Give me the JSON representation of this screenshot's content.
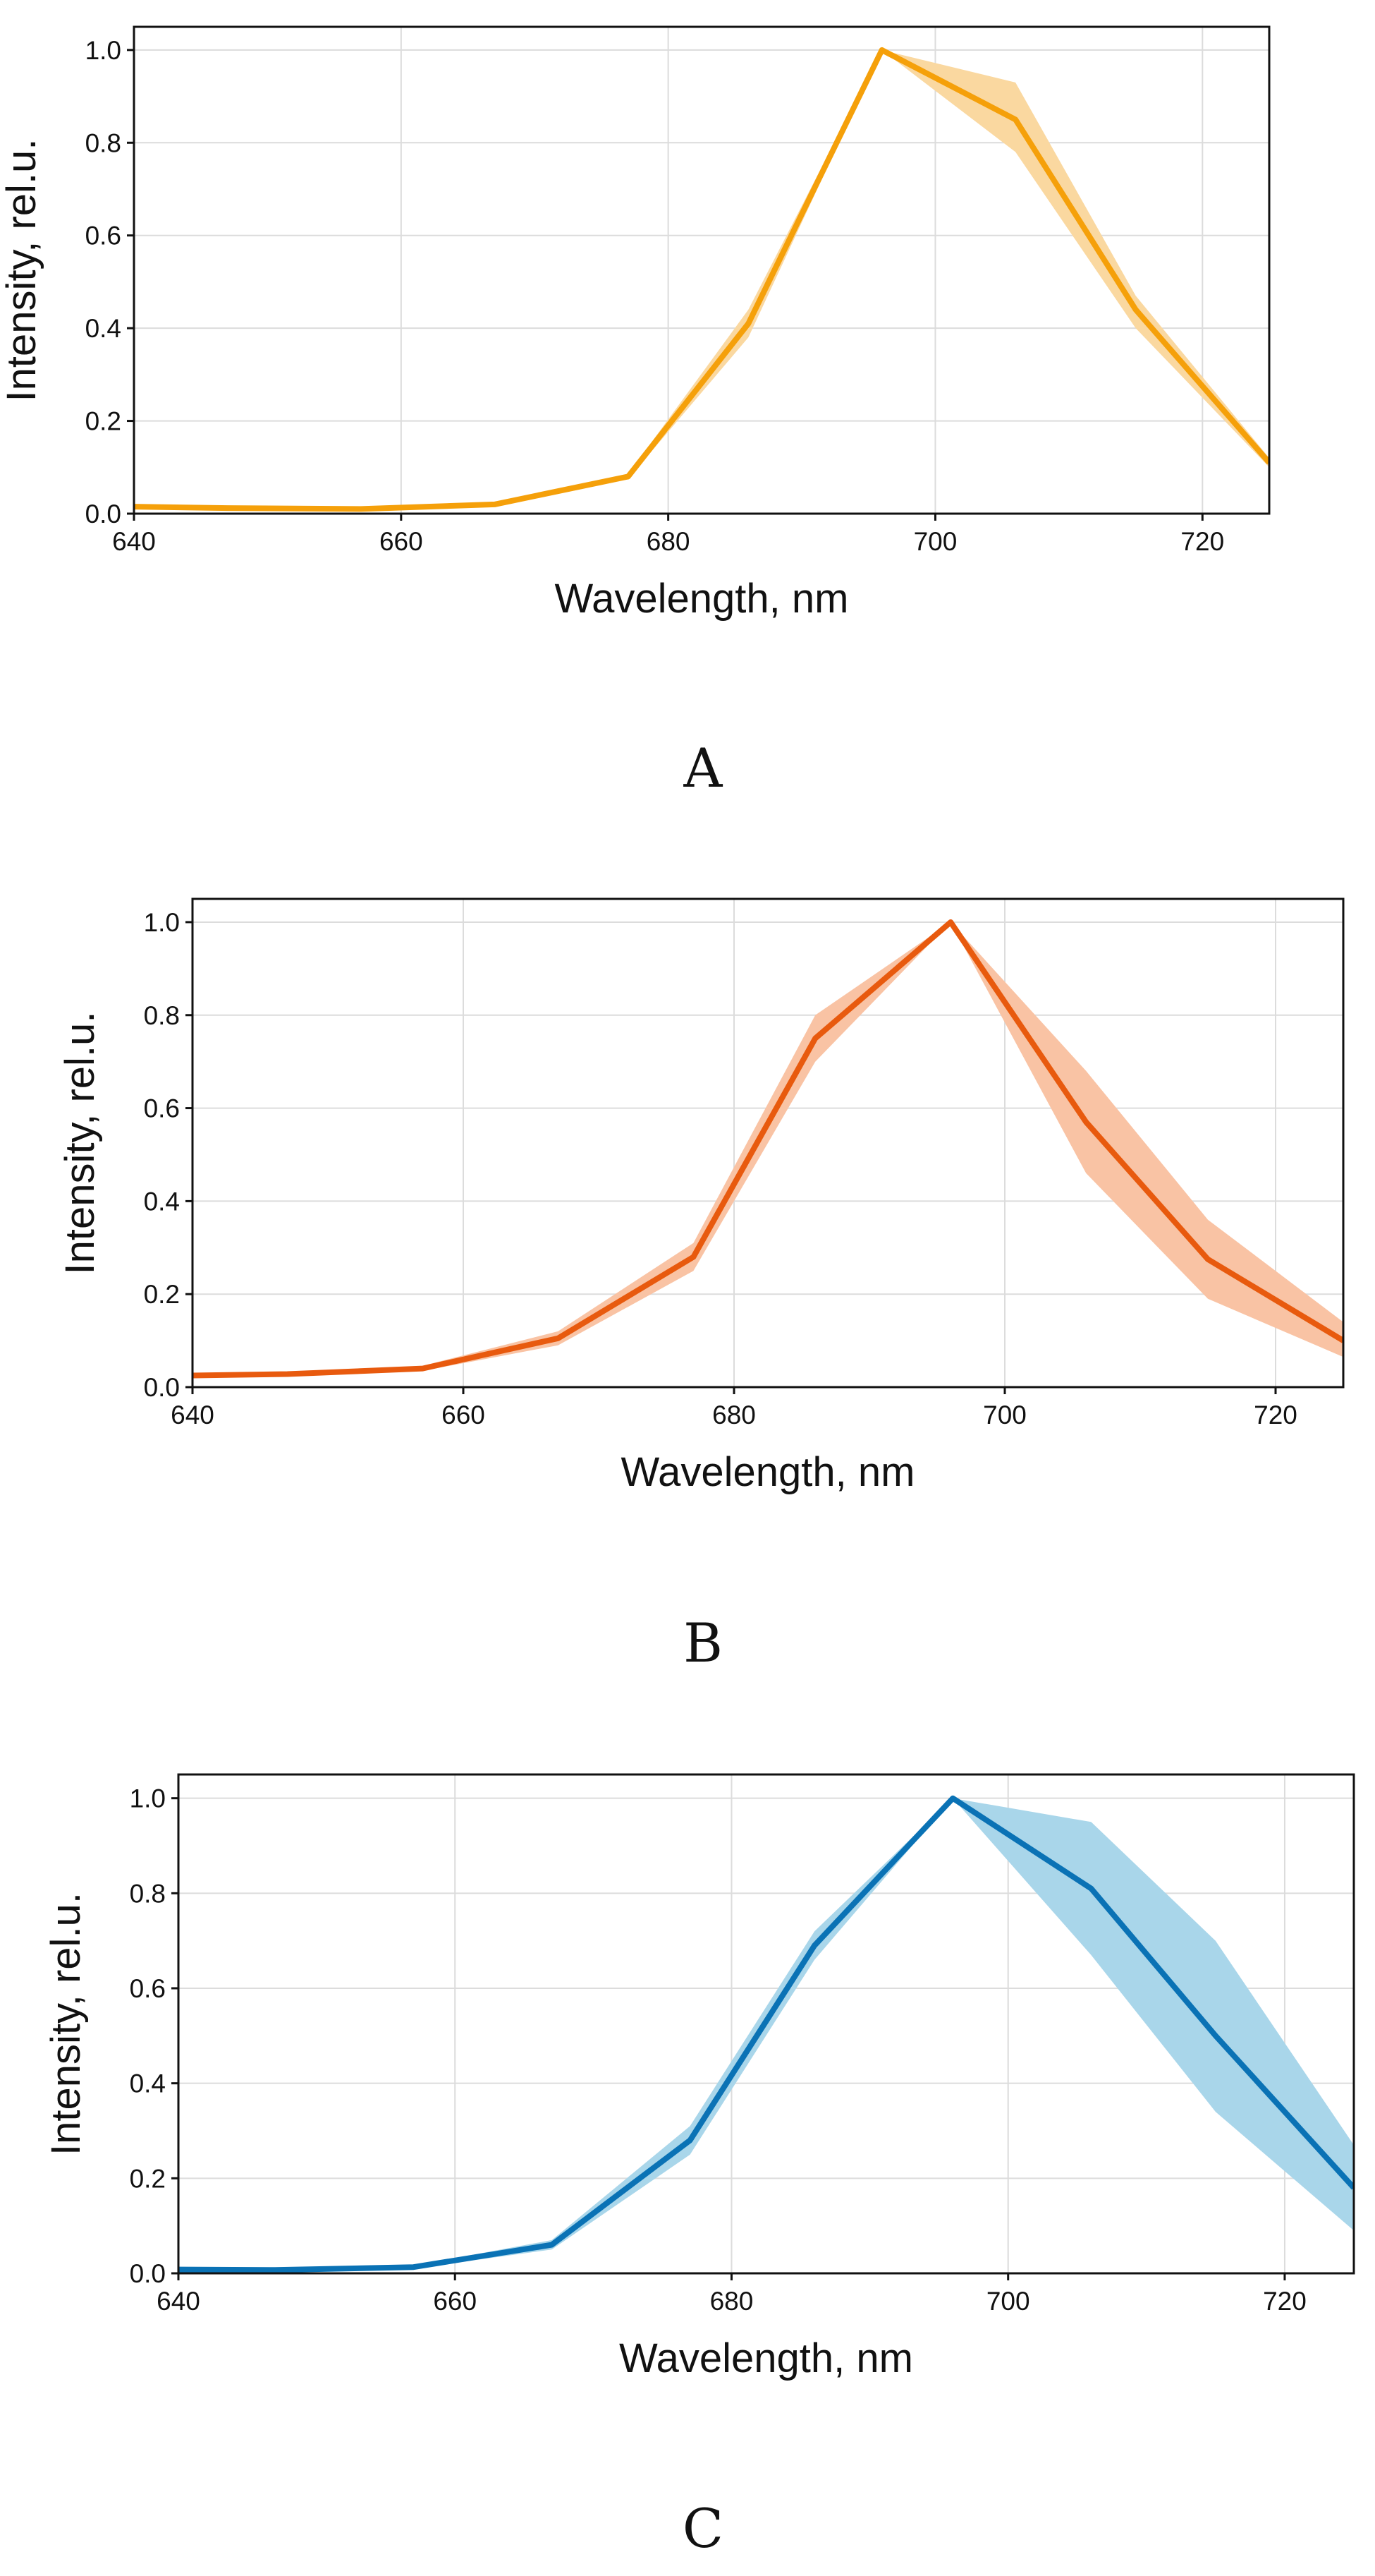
{
  "chart_data": [
    {
      "type": "line",
      "panel_label": "A",
      "xlabel": "Wavelength, nm",
      "ylabel": "Intensity, rel.u.",
      "xlim": [
        640,
        725
      ],
      "ylim": [
        0,
        1.05
      ],
      "xticks": [
        640,
        660,
        680,
        700,
        720
      ],
      "yticks": [
        0.0,
        0.2,
        0.4,
        0.6,
        0.8,
        1.0
      ],
      "grid": true,
      "series": [
        {
          "name": "A",
          "color": "#F5A00A",
          "band_color": "#FAD8A0",
          "x": [
            640,
            647,
            657,
            667,
            677,
            686,
            696,
            706,
            715,
            725
          ],
          "values": [
            0.015,
            0.012,
            0.01,
            0.02,
            0.08,
            0.41,
            1.0,
            0.85,
            0.44,
            0.11
          ],
          "lower": [
            0.013,
            0.01,
            0.008,
            0.017,
            0.075,
            0.38,
            1.0,
            0.78,
            0.4,
            0.1
          ],
          "upper": [
            0.018,
            0.015,
            0.012,
            0.024,
            0.085,
            0.44,
            1.0,
            0.93,
            0.47,
            0.12
          ]
        }
      ]
    },
    {
      "type": "line",
      "panel_label": "B",
      "xlabel": "Wavelength, nm",
      "ylabel": "Intensity, rel.u.",
      "xlim": [
        640,
        725
      ],
      "ylim": [
        0,
        1.05
      ],
      "xticks": [
        640,
        660,
        680,
        700,
        720
      ],
      "yticks": [
        0.0,
        0.2,
        0.4,
        0.6,
        0.8,
        1.0
      ],
      "grid": true,
      "series": [
        {
          "name": "B",
          "color": "#E85A0E",
          "band_color": "#F9C3A4",
          "x": [
            640,
            647,
            657,
            667,
            677,
            686,
            696,
            706,
            715,
            725
          ],
          "values": [
            0.025,
            0.028,
            0.04,
            0.105,
            0.28,
            0.75,
            1.0,
            0.57,
            0.275,
            0.1
          ],
          "lower": [
            0.022,
            0.025,
            0.035,
            0.09,
            0.25,
            0.7,
            1.0,
            0.46,
            0.19,
            0.065
          ],
          "upper": [
            0.028,
            0.031,
            0.046,
            0.12,
            0.31,
            0.8,
            1.0,
            0.68,
            0.36,
            0.14
          ]
        }
      ]
    },
    {
      "type": "line",
      "panel_label": "C",
      "xlabel": "Wavelength, nm",
      "ylabel": "Intensity, rel.u.",
      "xlim": [
        640,
        725
      ],
      "ylim": [
        0,
        1.05
      ],
      "xticks": [
        640,
        660,
        680,
        700,
        720
      ],
      "yticks": [
        0.0,
        0.2,
        0.4,
        0.6,
        0.8,
        1.0
      ],
      "grid": true,
      "series": [
        {
          "name": "C",
          "color": "#0A72B5",
          "band_color": "#A9D6EA",
          "x": [
            640,
            647,
            657,
            667,
            677,
            686,
            696,
            706,
            715,
            725
          ],
          "values": [
            0.008,
            0.007,
            0.013,
            0.06,
            0.28,
            0.69,
            1.0,
            0.81,
            0.5,
            0.18
          ],
          "lower": [
            0.006,
            0.005,
            0.01,
            0.05,
            0.25,
            0.66,
            1.0,
            0.67,
            0.34,
            0.09
          ],
          "upper": [
            0.01,
            0.009,
            0.016,
            0.07,
            0.31,
            0.72,
            1.0,
            0.95,
            0.7,
            0.27
          ]
        }
      ]
    }
  ]
}
